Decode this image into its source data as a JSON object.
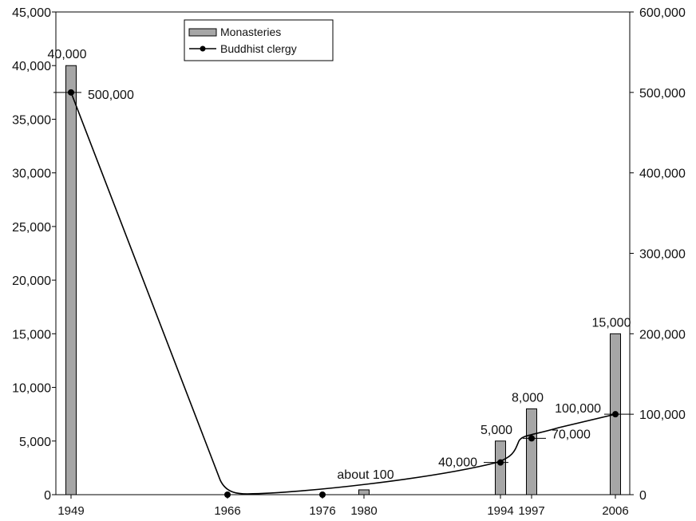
{
  "chart_data": {
    "type": "bar",
    "x": [
      "1949",
      "1966",
      "1976",
      "1980",
      "1994",
      "1997",
      "2006"
    ],
    "xlabels_shown": [
      "1949",
      "1966",
      "1976",
      "1980",
      "1994",
      "1997",
      "2006"
    ],
    "ylim_left": [
      0,
      45000
    ],
    "ylim_right": [
      0,
      600000
    ],
    "yticks_left": [
      "0",
      "5,000",
      "10,000",
      "15,000",
      "20,000",
      "25,000",
      "30,000",
      "35,000",
      "40,000",
      "45,000"
    ],
    "yticks_right": [
      "0",
      "100,000",
      "200,000",
      "300,000",
      "400,000",
      "500,000",
      "600,000"
    ],
    "series": [
      {
        "name": "Monasteries",
        "axis": "left",
        "type": "bar",
        "color": "#a6a6a6",
        "points": [
          {
            "x": "1949",
            "value": 40000,
            "label": "40,000"
          },
          {
            "x": "1980",
            "value": 450,
            "label": ""
          },
          {
            "x": "1994",
            "value": 5000,
            "label": "5,000"
          },
          {
            "x": "1997",
            "value": 8000,
            "label": "8,000"
          },
          {
            "x": "2006",
            "value": 15000,
            "label": "15,000"
          }
        ]
      },
      {
        "name": "Buddhist clergy",
        "axis": "right",
        "type": "line",
        "color": "#000000",
        "points": [
          {
            "x": "1949",
            "value": 500000,
            "label": "500,000"
          },
          {
            "x": "1966",
            "value": 0,
            "label": ""
          },
          {
            "x": "1976",
            "value": 0,
            "label": ""
          },
          {
            "x": "1994",
            "value": 40000,
            "label": "40,000"
          },
          {
            "x": "1997",
            "value": 70000,
            "label": "70,000"
          },
          {
            "x": "2006",
            "value": 100000,
            "label": "100,000"
          }
        ]
      }
    ],
    "annotations": [
      {
        "text": "about 100",
        "x": "1980"
      }
    ],
    "legend": {
      "position": "top-center",
      "entries": [
        "Monasteries",
        "Buddhist clergy"
      ]
    },
    "grid": false
  }
}
